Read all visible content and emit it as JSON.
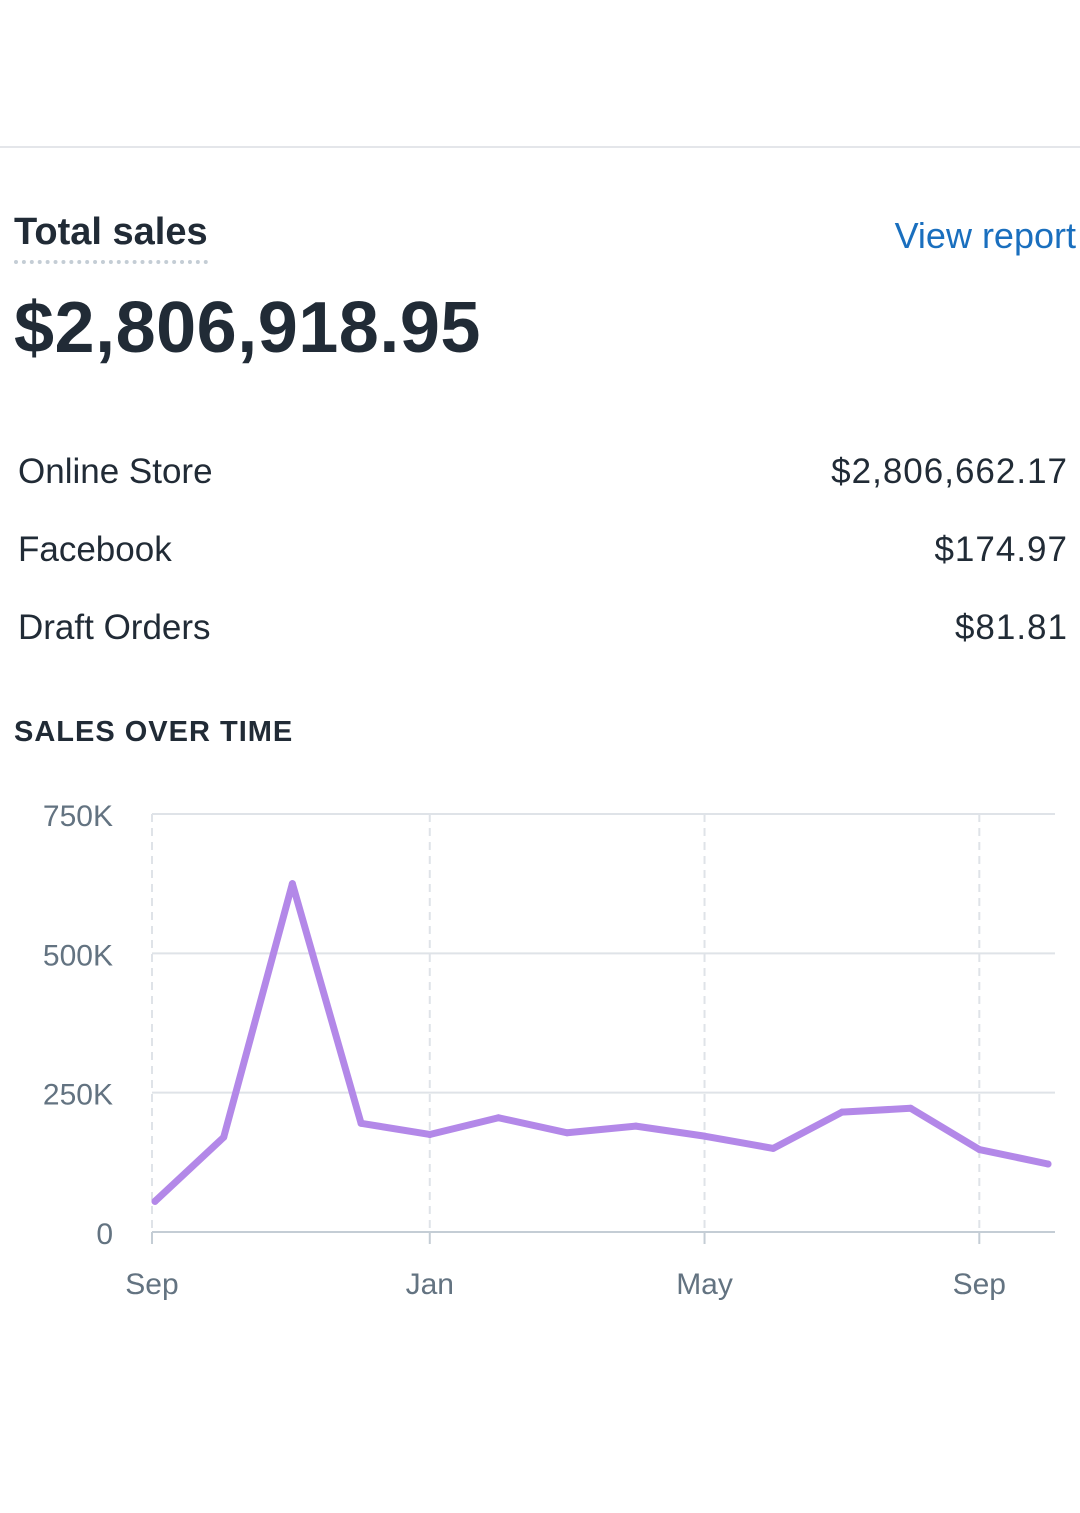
{
  "card": {
    "title": "Total sales",
    "view_report_label": "View report",
    "total_value": "$2,806,918.95"
  },
  "breakdown": [
    {
      "label": "Online Store",
      "value": "$2,806,662.17"
    },
    {
      "label": "Facebook",
      "value": "$174.97"
    },
    {
      "label": "Draft Orders",
      "value": "$81.81"
    }
  ],
  "section_title": "SALES OVER TIME",
  "chart_data": {
    "type": "line",
    "title": "",
    "xlabel": "",
    "ylabel": "",
    "x_tick_labels": [
      "Sep",
      "Jan",
      "May",
      "Sep"
    ],
    "x_tick_indices": [
      0,
      4,
      8,
      12
    ],
    "y_tick_labels": [
      "0",
      "250K",
      "500K",
      "750K"
    ],
    "y_tick_values": [
      0,
      250000,
      500000,
      750000
    ],
    "ylim": [
      0,
      750000
    ],
    "grid": true,
    "series": [
      {
        "values": [
          55000,
          170000,
          625000,
          195000,
          175000,
          205000,
          178000,
          190000,
          172000,
          150000,
          215000,
          222000,
          148000,
          122000
        ]
      }
    ],
    "colors": {
      "line": "#b388e8",
      "grid": "#dfe3e8",
      "axis_text": "#637381"
    }
  }
}
